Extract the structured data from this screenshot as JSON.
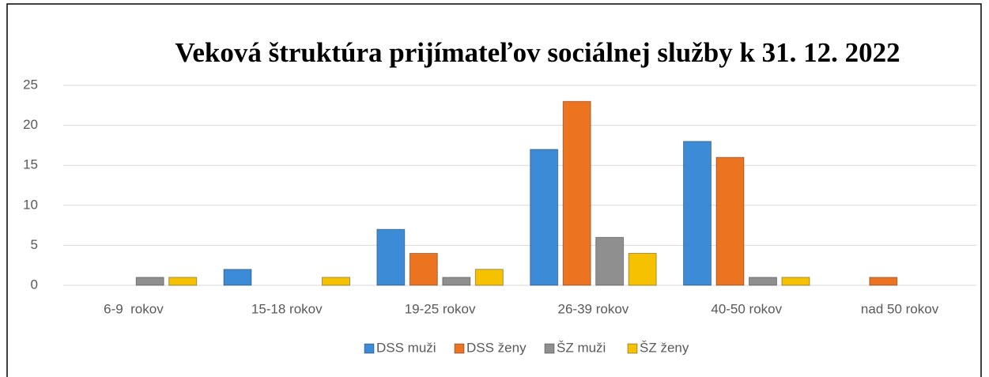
{
  "chart_data": {
    "type": "bar",
    "title": "Veková štruktúra prijímateľov sociálnej služby k 31. 12. 2022",
    "categories": [
      "6-9  rokov",
      "15-18 rokov",
      "19-25 rokov",
      "26-39 rokov",
      "40-50 rokov",
      "nad 50 rokov"
    ],
    "series": [
      {
        "name": "DSS muži",
        "color": "#3c8bd6",
        "values": [
          0,
          2,
          7,
          17,
          18,
          0
        ]
      },
      {
        "name": "DSS ženy",
        "color": "#ec7320",
        "values": [
          0,
          0,
          4,
          23,
          16,
          1
        ]
      },
      {
        "name": "ŠZ muži",
        "color": "#8f8f8f",
        "values": [
          1,
          0,
          1,
          6,
          1,
          0
        ]
      },
      {
        "name": "ŠZ ženy",
        "color": "#f6c200",
        "values": [
          1,
          1,
          2,
          4,
          1,
          0
        ]
      }
    ],
    "ylim": [
      0,
      25
    ],
    "yticks": [
      0,
      5,
      10,
      15,
      20,
      25
    ],
    "grid": true,
    "legend": "bottom"
  }
}
